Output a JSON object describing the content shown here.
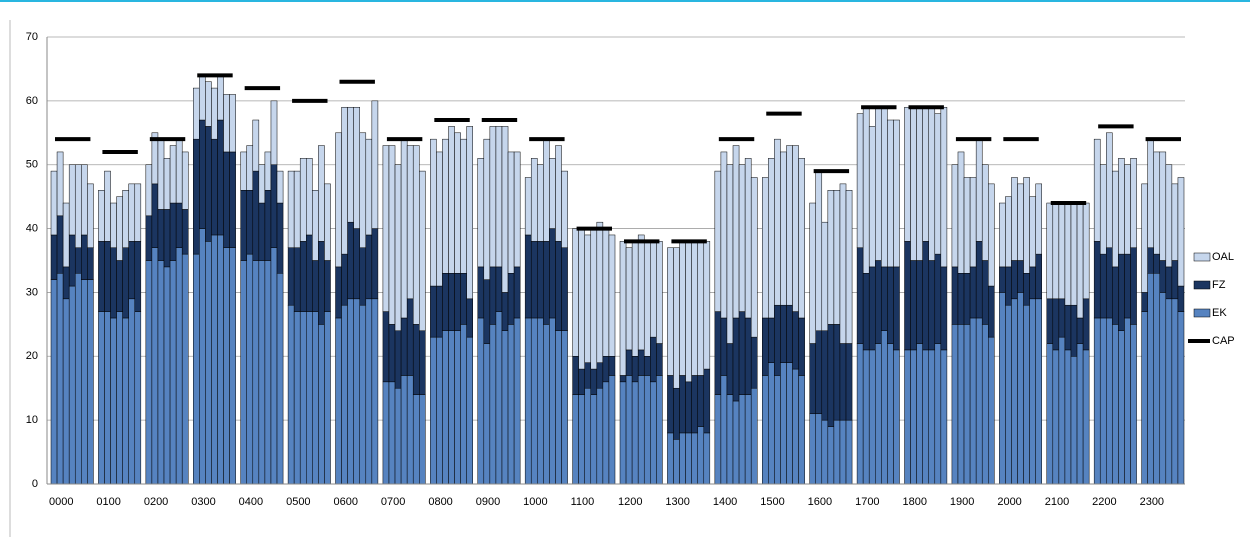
{
  "chart_data": {
    "type": "bar",
    "stacked": true,
    "categories": [
      "0000",
      "0100",
      "0200",
      "0300",
      "0400",
      "0500",
      "0600",
      "0700",
      "0800",
      "0900",
      "1000",
      "1100",
      "1200",
      "1300",
      "1400",
      "1500",
      "1600",
      "1700",
      "1800",
      "1900",
      "2000",
      "2100",
      "2200",
      "2300"
    ],
    "ylim": [
      0,
      70
    ],
    "yticks": [
      0,
      10,
      20,
      30,
      40,
      50,
      60,
      70
    ],
    "grid": true,
    "legend": "right",
    "series": [
      {
        "name": "EK",
        "color": "#5683c0",
        "values": [
          [
            32,
            33,
            29,
            31,
            33,
            32,
            32
          ],
          [
            27,
            27,
            26,
            27,
            26,
            29,
            27
          ],
          [
            35,
            37,
            35,
            34,
            35,
            37,
            36
          ],
          [
            36,
            40,
            38,
            39,
            39,
            37,
            37
          ],
          [
            35,
            36,
            35,
            35,
            35,
            37,
            33
          ],
          [
            28,
            27,
            27,
            27,
            27,
            25,
            27
          ],
          [
            26,
            28,
            29,
            29,
            28,
            29,
            29
          ],
          [
            16,
            16,
            15,
            17,
            17,
            14,
            14
          ],
          [
            23,
            23,
            24,
            24,
            24,
            25,
            23
          ],
          [
            26,
            22,
            25,
            27,
            24,
            25,
            26
          ],
          [
            26,
            26,
            26,
            25,
            26,
            24,
            24
          ],
          [
            14,
            14,
            15,
            14,
            15,
            16,
            17
          ],
          [
            16,
            17,
            16,
            17,
            17,
            16,
            17
          ],
          [
            8,
            7,
            8,
            8,
            8,
            9,
            8
          ],
          [
            14,
            17,
            14,
            13,
            14,
            14,
            15
          ],
          [
            17,
            19,
            17,
            19,
            19,
            18,
            17
          ],
          [
            11,
            11,
            10,
            9,
            10,
            10,
            10
          ],
          [
            22,
            21,
            21,
            22,
            24,
            22,
            21
          ],
          [
            21,
            21,
            22,
            21,
            21,
            22,
            21
          ],
          [
            25,
            25,
            25,
            26,
            26,
            25,
            23
          ],
          [
            30,
            28,
            29,
            30,
            28,
            29,
            29
          ],
          [
            22,
            21,
            23,
            21,
            20,
            22,
            21
          ],
          [
            26,
            26,
            26,
            25,
            24,
            26,
            25
          ],
          [
            27,
            33,
            33,
            30,
            29,
            29,
            27
          ]
        ]
      },
      {
        "name": "FZ",
        "color": "#1b3560",
        "values": [
          [
            7,
            9,
            5,
            8,
            4,
            7,
            5
          ],
          [
            11,
            11,
            11,
            8,
            11,
            9,
            11
          ],
          [
            7,
            10,
            8,
            9,
            9,
            7,
            7
          ],
          [
            18,
            17,
            18,
            15,
            18,
            15,
            15
          ],
          [
            11,
            10,
            14,
            9,
            11,
            13,
            11
          ],
          [
            9,
            10,
            11,
            12,
            8,
            13,
            8
          ],
          [
            8,
            8,
            12,
            11,
            9,
            10,
            11
          ],
          [
            11,
            9,
            9,
            9,
            12,
            11,
            10
          ],
          [
            8,
            8,
            9,
            9,
            9,
            8,
            6
          ],
          [
            8,
            10,
            9,
            7,
            6,
            8,
            8
          ],
          [
            13,
            12,
            12,
            13,
            14,
            14,
            13
          ],
          [
            6,
            4,
            4,
            4,
            4,
            4,
            3
          ],
          [
            1,
            4,
            4,
            4,
            3,
            7,
            5
          ],
          [
            9,
            8,
            9,
            8,
            9,
            8,
            10
          ],
          [
            13,
            9,
            8,
            13,
            13,
            12,
            8
          ],
          [
            9,
            7,
            11,
            9,
            9,
            9,
            9
          ],
          [
            11,
            13,
            14,
            16,
            15,
            12,
            12
          ],
          [
            15,
            12,
            13,
            13,
            10,
            12,
            13
          ],
          [
            17,
            14,
            13,
            17,
            14,
            14,
            13
          ],
          [
            9,
            8,
            8,
            8,
            12,
            10,
            8
          ],
          [
            4,
            6,
            6,
            5,
            5,
            5,
            7
          ],
          [
            7,
            8,
            6,
            7,
            8,
            4,
            8
          ],
          [
            12,
            10,
            11,
            9,
            12,
            10,
            12
          ],
          [
            3,
            4,
            3,
            5,
            5,
            6,
            4
          ]
        ]
      },
      {
        "name": "OAL",
        "color": "#c6d6ec",
        "values": [
          [
            10,
            10,
            10,
            11,
            13,
            11,
            10
          ],
          [
            8,
            11,
            7,
            10,
            9,
            9,
            9
          ],
          [
            8,
            8,
            11,
            8,
            9,
            10,
            9
          ],
          [
            8,
            7,
            7,
            8,
            7,
            9,
            9
          ],
          [
            6,
            7,
            8,
            6,
            6,
            10,
            5
          ],
          [
            12,
            12,
            13,
            12,
            11,
            15,
            12
          ],
          [
            21,
            23,
            18,
            19,
            18,
            15,
            20
          ],
          [
            26,
            28,
            26,
            28,
            24,
            28,
            25
          ],
          [
            23,
            21,
            21,
            23,
            22,
            21,
            27
          ],
          [
            17,
            22,
            22,
            22,
            26,
            19,
            18
          ],
          [
            9,
            13,
            12,
            16,
            11,
            15,
            12
          ],
          [
            20,
            22,
            20,
            22,
            22,
            20,
            19
          ],
          [
            21,
            16,
            18,
            18,
            18,
            15,
            16
          ],
          [
            20,
            22,
            21,
            22,
            21,
            21,
            20
          ],
          [
            22,
            26,
            28,
            27,
            23,
            25,
            25
          ],
          [
            22,
            25,
            26,
            24,
            25,
            26,
            25
          ],
          [
            22,
            25,
            17,
            21,
            21,
            25,
            24
          ],
          [
            21,
            26,
            22,
            24,
            25,
            23,
            23
          ],
          [
            21,
            24,
            24,
            21,
            24,
            22,
            25
          ],
          [
            16,
            19,
            15,
            14,
            16,
            15,
            16
          ],
          [
            10,
            11,
            13,
            12,
            15,
            11,
            11
          ],
          [
            15,
            15,
            15,
            16,
            16,
            18,
            15
          ],
          [
            16,
            14,
            18,
            15,
            15,
            14,
            14
          ],
          [
            17,
            17,
            16,
            17,
            16,
            12,
            17
          ]
        ]
      },
      {
        "name": "CAP",
        "color": "#000000",
        "mark": "dash",
        "values": [
          54,
          52,
          54,
          64,
          62,
          60,
          63,
          54,
          57,
          57,
          54,
          40,
          38,
          38,
          54,
          58,
          49,
          59,
          59,
          54,
          54,
          44,
          56,
          54
        ]
      }
    ]
  }
}
